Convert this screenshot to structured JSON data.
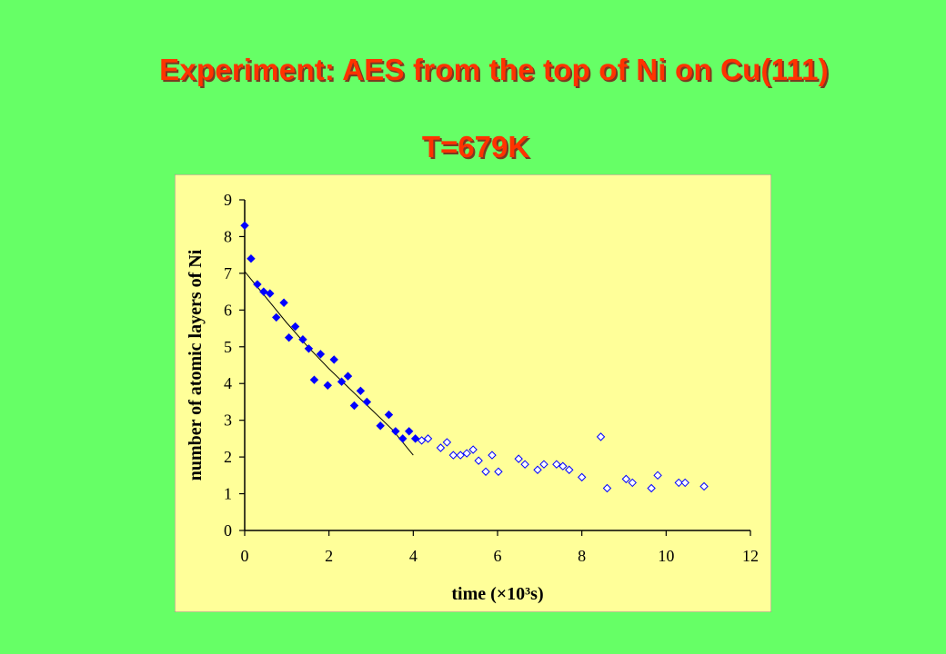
{
  "header": {
    "title": "Experiment: AES from the top of Ni on Cu(111)",
    "subtitle": "T=679K"
  },
  "colors": {
    "background": "#66ff66",
    "plot_area": "#ffff99",
    "title": "#ff3300",
    "filled_marker": "#0000ff",
    "open_marker": "#0000ff",
    "fit_line": "#000000"
  },
  "chart_data": {
    "type": "scatter",
    "title": "",
    "xlabel": "time (×10³s)",
    "ylabel": "number of atomic layers of Ni",
    "xlim": [
      0,
      12
    ],
    "ylim": [
      0,
      9
    ],
    "xticks": [
      0,
      2,
      4,
      6,
      8,
      10,
      12
    ],
    "yticks": [
      0,
      1,
      2,
      3,
      4,
      5,
      6,
      7,
      8,
      9
    ],
    "grid": false,
    "series": [
      {
        "marker": "filled-diamond",
        "points": [
          [
            0.0,
            8.3
          ],
          [
            0.15,
            7.4
          ],
          [
            0.3,
            6.7
          ],
          [
            0.45,
            6.5
          ],
          [
            0.6,
            6.45
          ],
          [
            0.75,
            5.8
          ],
          [
            0.93,
            6.2
          ],
          [
            1.05,
            5.25
          ],
          [
            1.2,
            5.55
          ],
          [
            1.38,
            5.2
          ],
          [
            1.52,
            4.95
          ],
          [
            1.65,
            4.1
          ],
          [
            1.8,
            4.8
          ],
          [
            1.97,
            3.95
          ],
          [
            2.12,
            4.65
          ],
          [
            2.3,
            4.05
          ],
          [
            2.45,
            4.2
          ],
          [
            2.6,
            3.4
          ],
          [
            2.75,
            3.8
          ],
          [
            2.9,
            3.5
          ],
          [
            3.22,
            2.85
          ],
          [
            3.42,
            3.15
          ],
          [
            3.58,
            2.7
          ],
          [
            3.75,
            2.5
          ],
          [
            3.9,
            2.7
          ],
          [
            4.05,
            2.5
          ]
        ]
      },
      {
        "marker": "open-diamond",
        "points": [
          [
            4.2,
            2.45
          ],
          [
            4.35,
            2.5
          ],
          [
            4.65,
            2.25
          ],
          [
            4.8,
            2.4
          ],
          [
            4.95,
            2.05
          ],
          [
            5.12,
            2.05
          ],
          [
            5.27,
            2.1
          ],
          [
            5.42,
            2.2
          ],
          [
            5.55,
            1.9
          ],
          [
            5.72,
            1.6
          ],
          [
            5.87,
            2.05
          ],
          [
            6.02,
            1.6
          ],
          [
            6.5,
            1.95
          ],
          [
            6.65,
            1.8
          ],
          [
            6.95,
            1.65
          ],
          [
            7.1,
            1.8
          ],
          [
            7.4,
            1.8
          ],
          [
            7.55,
            1.75
          ],
          [
            7.7,
            1.65
          ],
          [
            8.0,
            1.45
          ],
          [
            8.45,
            2.55
          ],
          [
            8.6,
            1.15
          ],
          [
            9.05,
            1.4
          ],
          [
            9.2,
            1.3
          ],
          [
            9.65,
            1.15
          ],
          [
            9.8,
            1.5
          ],
          [
            10.3,
            1.3
          ],
          [
            10.45,
            1.3
          ],
          [
            10.9,
            1.2
          ]
        ]
      }
    ],
    "fit_line": [
      [
        0.0,
        7.05
      ],
      [
        0.5,
        6.35
      ],
      [
        1.0,
        5.65
      ],
      [
        1.5,
        5.0
      ],
      [
        2.0,
        4.4
      ],
      [
        2.5,
        3.85
      ],
      [
        3.0,
        3.3
      ],
      [
        3.5,
        2.75
      ],
      [
        4.0,
        2.05
      ]
    ]
  }
}
